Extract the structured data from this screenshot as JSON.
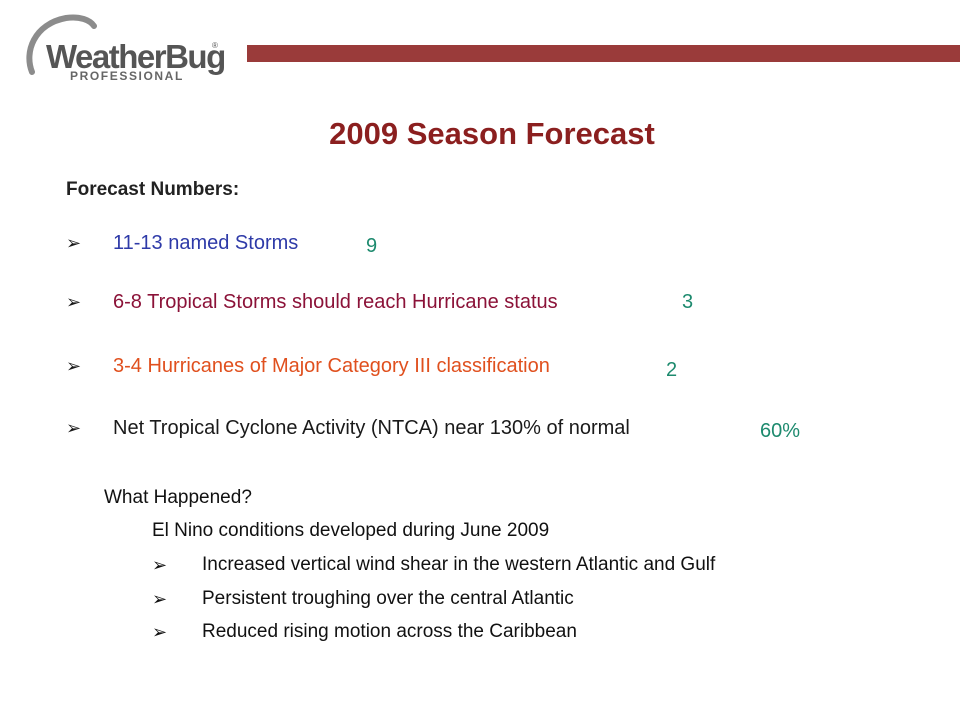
{
  "logo": {
    "wordmark": "WeatherBug",
    "registered": "®",
    "subtitle": "PROFESSIONAL",
    "arc_color": "#8c8c8c",
    "bar_color": "#9a3b3a"
  },
  "title": "2009 Season Forecast",
  "section_label": "Forecast Numbers:",
  "forecast": [
    {
      "arrow": "➢",
      "text": "11-13 named Storms",
      "color": "#2e3aa8",
      "actual": "9"
    },
    {
      "arrow": "➢",
      "text": "6-8 Tropical Storms should reach Hurricane status",
      "color": "#8b1238",
      "actual": "3"
    },
    {
      "arrow": "➢",
      "text": "3-4 Hurricanes of Major Category III classification",
      "color": "#e0501e",
      "actual": "2"
    },
    {
      "arrow": "➢",
      "text": "Net Tropical Cyclone Activity (NTCA) near 130% of normal",
      "color": "#1a1a1a",
      "actual": "60%"
    }
  ],
  "actual_color": "#1d8a6e",
  "what_happened": {
    "heading": "What Happened?",
    "subheading": "El Nino conditions developed during June 2009",
    "items": [
      {
        "arrow": "➢",
        "text": "Increased vertical wind shear in the western Atlantic and Gulf"
      },
      {
        "arrow": "➢",
        "text": "Persistent troughing over the central Atlantic"
      },
      {
        "arrow": "➢",
        "text": "Reduced rising motion across the Caribbean"
      }
    ]
  }
}
